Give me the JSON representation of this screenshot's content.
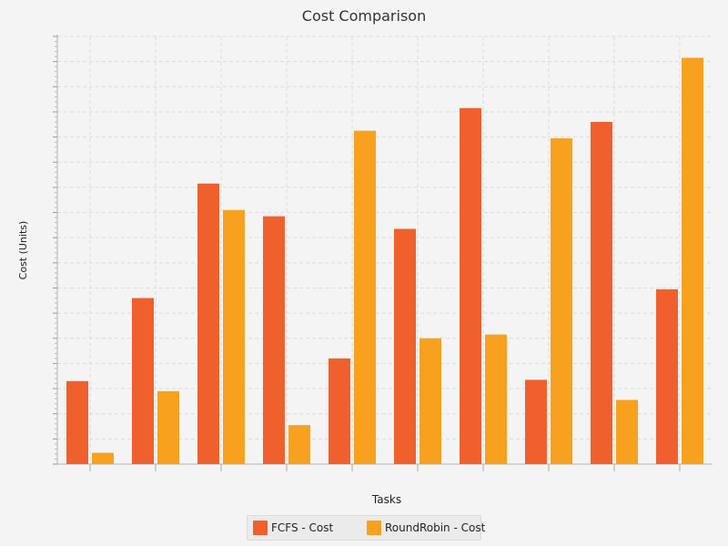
{
  "chart_data": {
    "type": "bar",
    "title": "Cost Comparison",
    "xlabel": "Tasks",
    "ylabel": "Cost (Units)",
    "categories": [
      "",
      "",
      "",
      "",
      "",
      "",
      "",
      "",
      "",
      ""
    ],
    "series": [
      {
        "name": "FCFS - Cost",
        "color": "#f0602d",
        "values": [
          33,
          66,
          111.5,
          98.5,
          42,
          93.5,
          141.5,
          33.5,
          136,
          69.5
        ]
      },
      {
        "name": "RoundRobin - Cost",
        "color": "#f7a11f",
        "values": [
          4.5,
          29,
          101,
          15.5,
          132.5,
          50,
          51.5,
          129.5,
          25.5,
          161.5
        ]
      }
    ],
    "ylim": [
      0,
      170
    ],
    "grid": true,
    "legend_position": "bottom"
  }
}
